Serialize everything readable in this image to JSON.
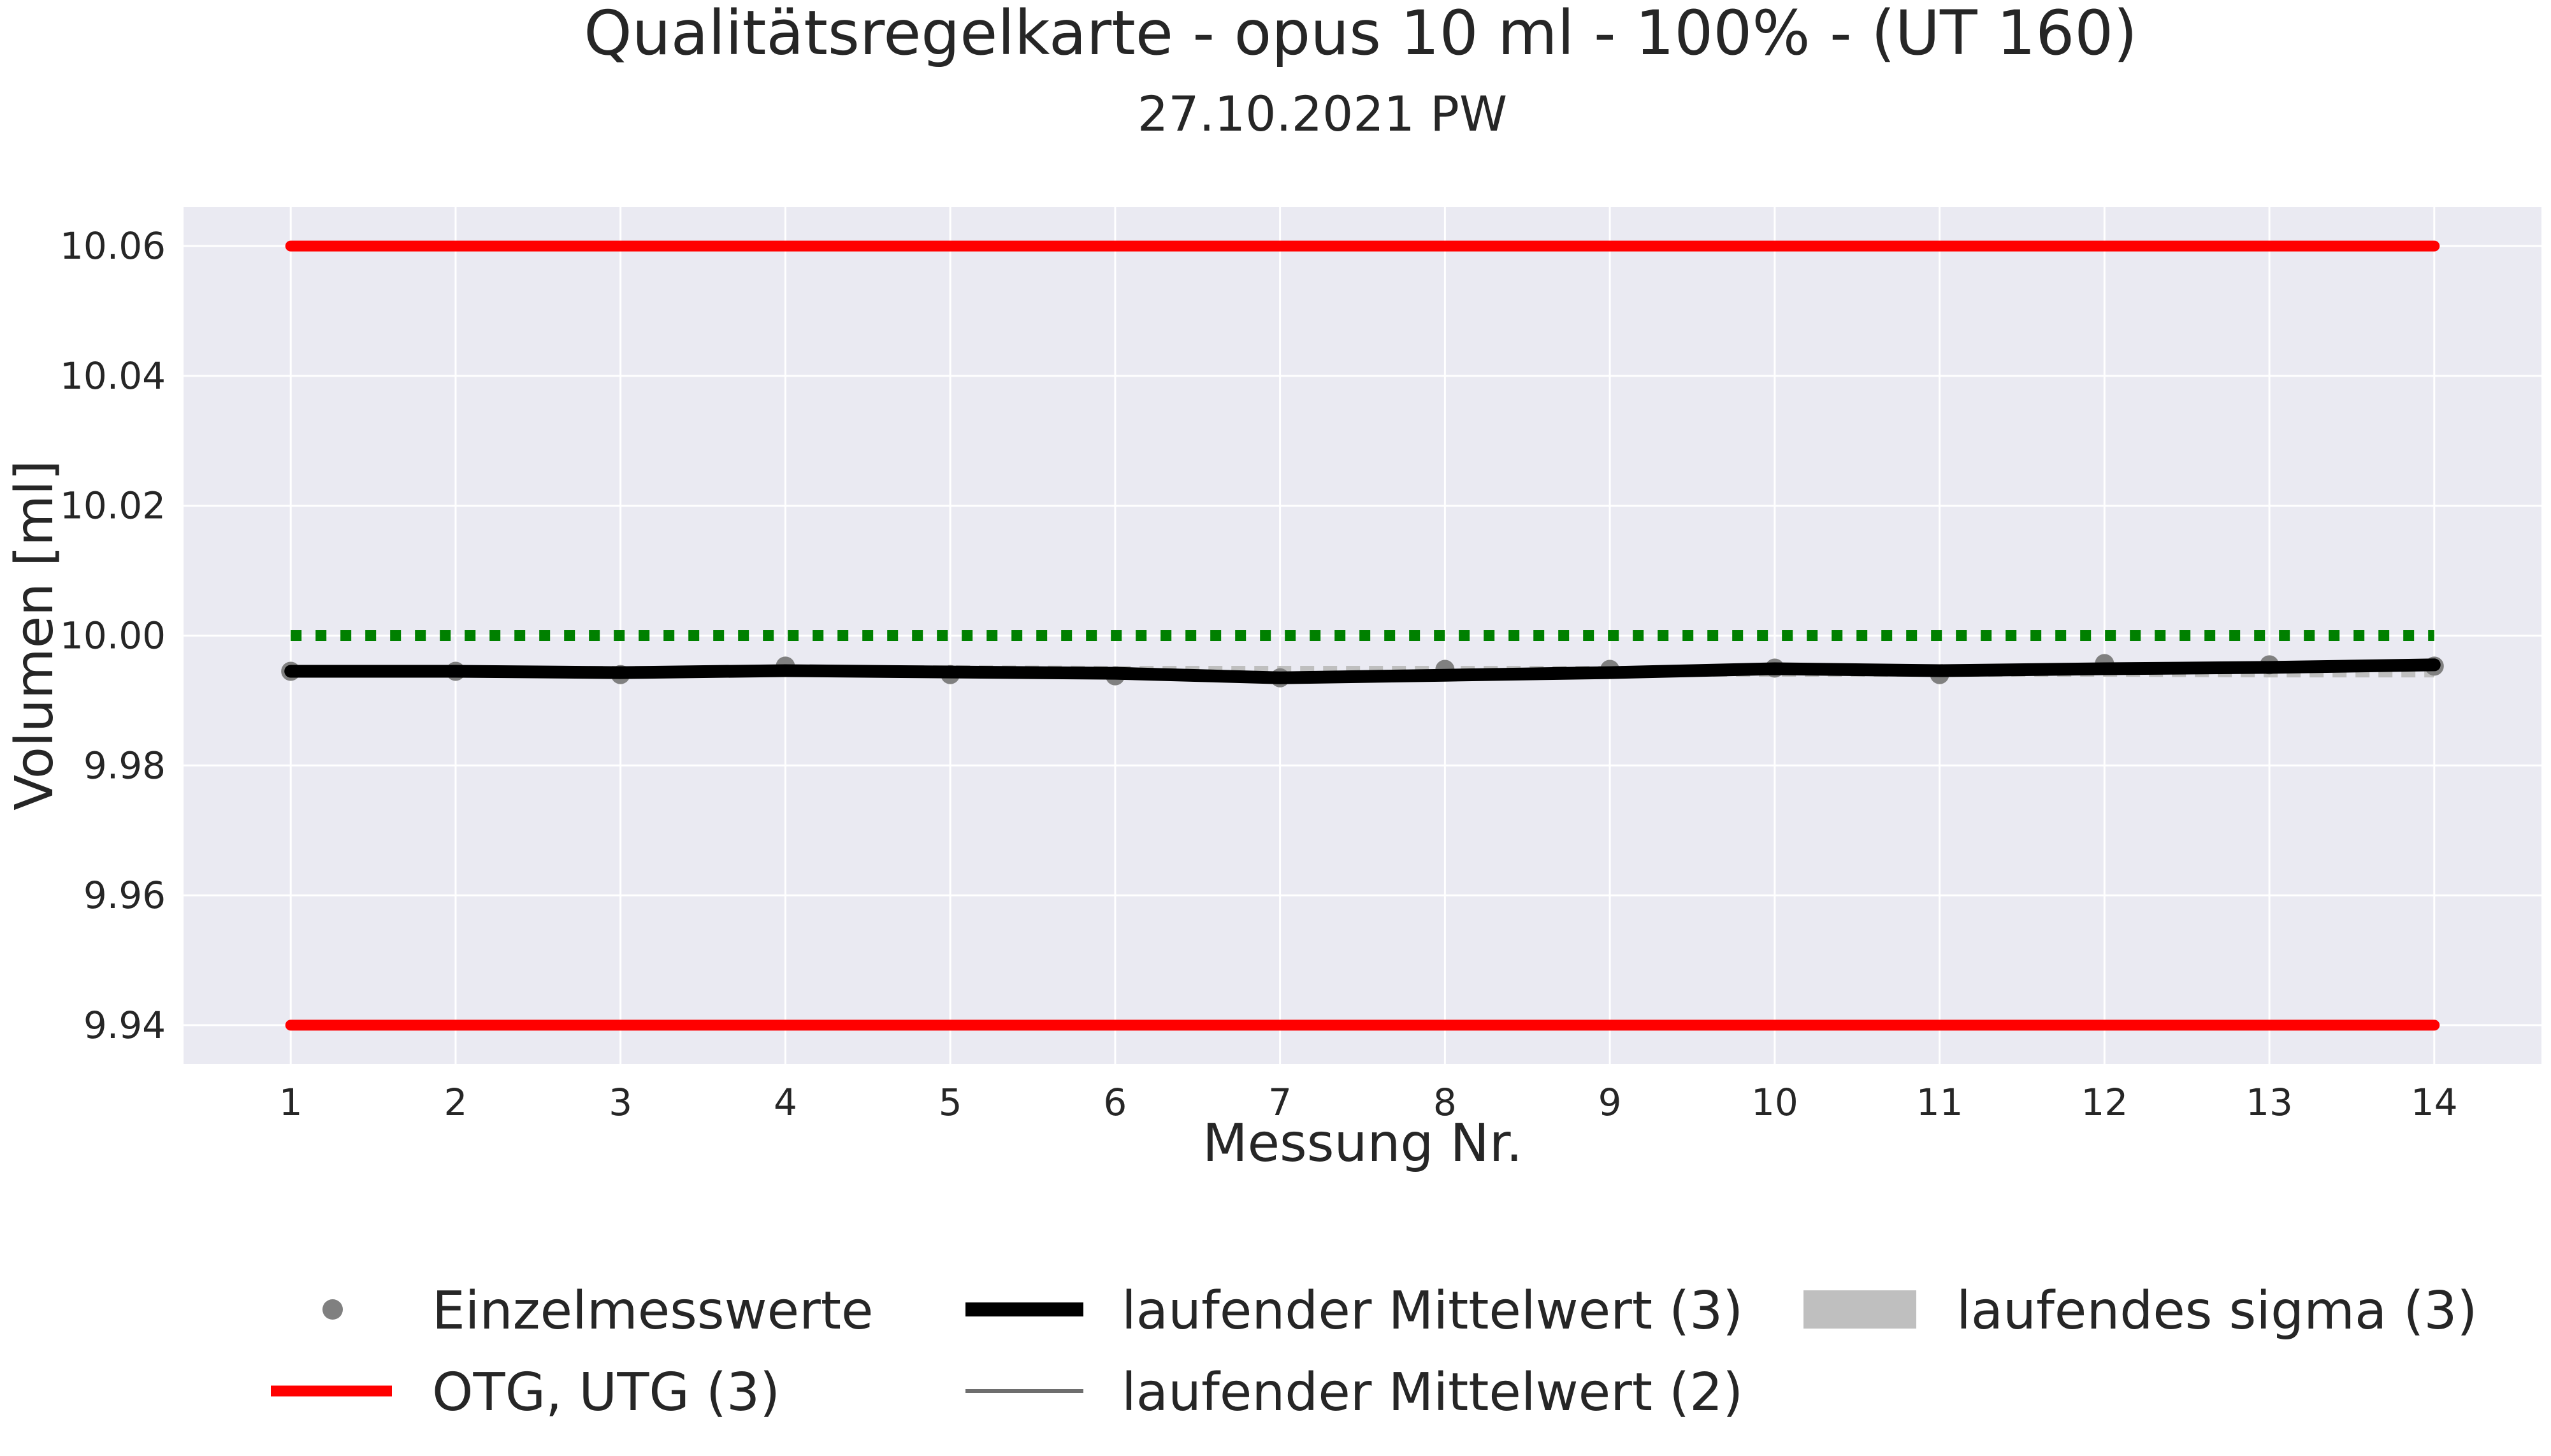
{
  "chart_data": {
    "type": "line",
    "title": "Qualitätsregelkarte - opus 10 ml - 100% - (UT 160)",
    "subtitle": "27.10.2021 PW",
    "xlabel": "Messung Nr.",
    "ylabel": "Volumen [ml]",
    "xlim": [
      0.35,
      14.65
    ],
    "ylim": [
      9.934,
      10.066
    ],
    "x_ticks": [
      1,
      2,
      3,
      4,
      5,
      6,
      7,
      8,
      9,
      10,
      11,
      12,
      13,
      14
    ],
    "y_ticks": [
      "9.94",
      "9.96",
      "9.98",
      "10.00",
      "10.02",
      "10.04",
      "10.06"
    ],
    "grid": true,
    "legend_position": "bottom",
    "x": [
      1,
      2,
      3,
      4,
      5,
      6,
      7,
      8,
      9,
      10,
      11,
      12,
      13,
      14
    ],
    "series": [
      {
        "name": "Einzelmesswerte",
        "kind": "points",
        "color": "#808080",
        "values": [
          9.9945,
          9.9945,
          9.994,
          9.9953,
          9.994,
          9.9938,
          9.9935,
          9.9948,
          9.9948,
          9.995,
          9.994,
          9.9957,
          9.9955,
          9.9953
        ]
      },
      {
        "name": "OTG, UTG (3)",
        "kind": "limits",
        "color": "#ff0000",
        "values_upper": [
          10.06,
          10.06,
          10.06,
          10.06,
          10.06,
          10.06,
          10.06,
          10.06,
          10.06,
          10.06,
          10.06,
          10.06,
          10.06,
          10.06
        ],
        "values_lower": [
          9.94,
          9.94,
          9.94,
          9.94,
          9.94,
          9.94,
          9.94,
          9.94,
          9.94,
          9.94,
          9.94,
          9.94,
          9.94,
          9.94
        ]
      },
      {
        "name": "laufender Mittelwert (3)",
        "kind": "thick-line",
        "color": "#000000",
        "values": [
          9.9945,
          9.9945,
          9.9943,
          9.9946,
          9.9944,
          9.9942,
          9.9935,
          9.9939,
          9.9943,
          9.9949,
          9.9946,
          9.9949,
          9.9951,
          9.9955
        ]
      },
      {
        "name": "laufender Mittelwert (2)",
        "kind": "thin-line",
        "color": "#6e6e6e",
        "values": [
          9.9945,
          9.9945,
          9.9943,
          9.9946,
          9.9947,
          9.9939,
          9.9937,
          9.9941,
          9.9948,
          9.9949,
          9.9945,
          9.9948,
          9.9956,
          9.9954
        ]
      },
      {
        "name": "laufendes sigma (3)",
        "kind": "band",
        "color": "#bfbfbf",
        "values": [
          9.9945,
          9.9945,
          9.9945,
          9.9945,
          9.9946,
          9.9945,
          9.9945,
          9.9945,
          9.9945,
          9.9945,
          9.9945,
          9.9945,
          9.9944,
          9.9944
        ]
      }
    ],
    "target_line": {
      "value": 10.0,
      "color": "#008000",
      "style": "dotted"
    }
  }
}
